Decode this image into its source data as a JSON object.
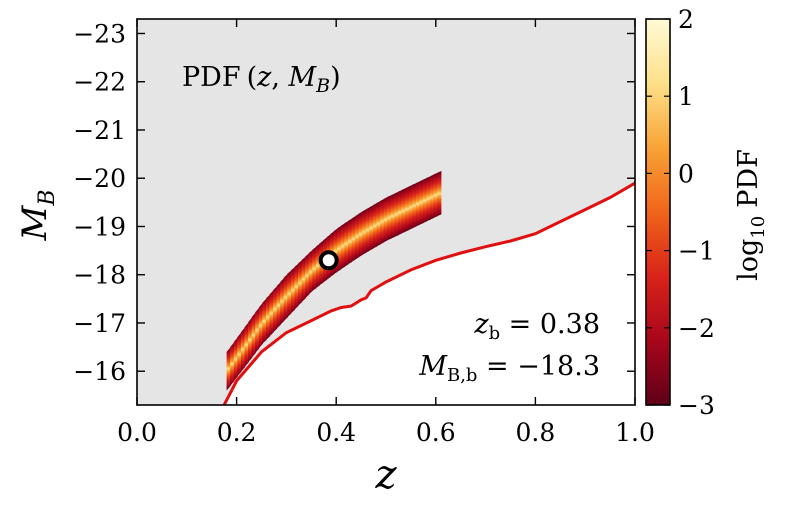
{
  "chart_data": {
    "type": "heatmap",
    "title": "",
    "panel_title": "PDF (z, M_B)",
    "xlabel": "z",
    "ylabel": "M_B",
    "xlim": [
      0.0,
      1.0
    ],
    "ylim": [
      -15.3,
      -23.3
    ],
    "y_axis_inverted": true,
    "x_ticks": [
      "0.0",
      "0.2",
      "0.4",
      "0.6",
      "0.8",
      "1.0"
    ],
    "x_tick_values": [
      0.0,
      0.2,
      0.4,
      0.6,
      0.8,
      1.0
    ],
    "y_ticks": [
      "−16",
      "−17",
      "−18",
      "−19",
      "−20",
      "−21",
      "−22",
      "−23"
    ],
    "y_tick_values": [
      -16,
      -17,
      -18,
      -19,
      -20,
      -21,
      -22,
      -23
    ],
    "colorbar": {
      "label": "log10 PDF",
      "label_main": "log",
      "label_sub": "10",
      "label_suffix": "PDF",
      "range": [
        -3,
        2
      ],
      "ticks": [
        "2",
        "1",
        "0",
        "−1",
        "−2",
        "−3"
      ],
      "tick_values": [
        2,
        1,
        0,
        -1,
        -2,
        -3
      ],
      "colormap": [
        "#5e0018",
        "#a8061b",
        "#d8231a",
        "#f0651a",
        "#f8a336",
        "#fde08a",
        "#fffbd6"
      ]
    },
    "pdf_band": {
      "z_range": [
        0.18,
        0.61
      ],
      "center_line": [
        [
          0.18,
          -16.0
        ],
        [
          0.25,
          -16.95
        ],
        [
          0.3,
          -17.55
        ],
        [
          0.35,
          -18.05
        ],
        [
          0.38,
          -18.35
        ],
        [
          0.42,
          -18.7
        ],
        [
          0.47,
          -19.05
        ],
        [
          0.52,
          -19.3
        ],
        [
          0.57,
          -19.5
        ],
        [
          0.61,
          -19.65
        ]
      ],
      "upper_edge": [
        [
          0.18,
          -16.4
        ],
        [
          0.25,
          -17.4
        ],
        [
          0.3,
          -18.0
        ],
        [
          0.35,
          -18.5
        ],
        [
          0.4,
          -18.95
        ],
        [
          0.45,
          -19.3
        ],
        [
          0.5,
          -19.6
        ],
        [
          0.55,
          -19.85
        ],
        [
          0.61,
          -20.15
        ]
      ],
      "lower_edge": [
        [
          0.18,
          -15.6
        ],
        [
          0.25,
          -16.55
        ],
        [
          0.3,
          -17.1
        ],
        [
          0.35,
          -17.65
        ],
        [
          0.4,
          -18.05
        ],
        [
          0.45,
          -18.4
        ],
        [
          0.5,
          -18.7
        ],
        [
          0.55,
          -18.95
        ],
        [
          0.61,
          -19.25
        ]
      ]
    },
    "series": [
      {
        "type": "line",
        "color": "#e01010",
        "x": [
          0.175,
          0.2,
          0.25,
          0.3,
          0.35,
          0.39,
          0.41,
          0.43,
          0.45,
          0.46,
          0.47,
          0.5,
          0.55,
          0.6,
          0.65,
          0.7,
          0.75,
          0.8,
          0.85,
          0.9,
          0.95,
          1.0
        ],
        "y": [
          -15.3,
          -15.8,
          -16.4,
          -16.8,
          -17.05,
          -17.25,
          -17.32,
          -17.35,
          -17.48,
          -17.52,
          -17.67,
          -17.85,
          -18.1,
          -18.3,
          -18.45,
          -18.58,
          -18.7,
          -18.85,
          -19.1,
          -19.35,
          -19.6,
          -19.9
        ]
      }
    ],
    "marker": {
      "z": 0.385,
      "M_B": -18.3
    },
    "annotations": [
      {
        "id": "zb",
        "text": "z_b = 0.38",
        "main": "z",
        "sub": "b",
        "rest": " = 0.38"
      },
      {
        "id": "mb",
        "text": "M_B,b = −18.3",
        "main": "M",
        "sub": "B,b",
        "rest": " = −18.3"
      }
    ],
    "plot_background": "#e5e5e5",
    "grid": false
  }
}
